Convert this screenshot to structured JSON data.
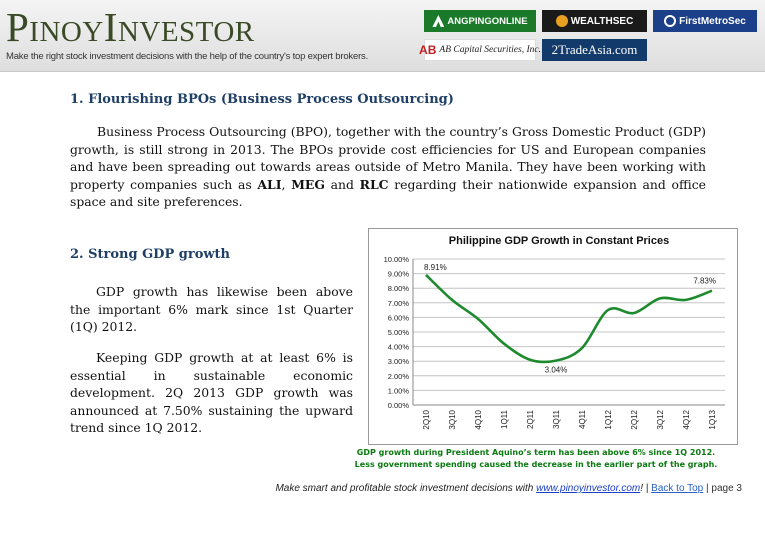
{
  "header": {
    "brand": "PinoyInvestor",
    "tagline": "Make the right stock investment decisions with the help of the country's top expert brokers.",
    "brokers": [
      "ANGPINGONLINE",
      "WEALTHSEC",
      "FirstMetroSec",
      "AB Capital Securities, Inc.",
      "2TradeAsia.com"
    ]
  },
  "sections": {
    "s1": {
      "heading": "1. Flourishing BPOs (Business Process Outsourcing)",
      "p_a": "Business Process Outsourcing (BPO), together with the country’s Gross Domestic Product (GDP) growth, is still strong in 2013. The BPOs provide cost efficiencies for US and European companies and have been spreading out towards areas outside of Metro Manila. They have been working with property companies such as ",
      "t1": "ALI",
      "sep1": ", ",
      "t2": "MEG",
      "sep2": " and ",
      "t3": "RLC",
      "p_b": " regarding their nationwide expansion and office space and site preferences."
    },
    "s2": {
      "heading": "2. Strong GDP growth",
      "p1": "GDP growth has likewise been above the important 6% mark since 1st Quarter (1Q) 2012.",
      "p2": "Keeping GDP growth at at least 6% is essential in sustainable economic development. 2Q 2013 GDP growth was announced at 7.50% sustaining the upward trend since 1Q 2012."
    }
  },
  "chart_data": {
    "type": "line",
    "title": "Philippine GDP Growth in Constant Prices",
    "categories": [
      "2Q10",
      "3Q10",
      "4Q10",
      "1Q11",
      "2Q11",
      "3Q11",
      "4Q11",
      "1Q12",
      "2Q12",
      "3Q12",
      "4Q12",
      "1Q13"
    ],
    "series": [
      {
        "values": [
          8.91,
          7.2,
          5.9,
          4.2,
          3.1,
          3.04,
          3.9,
          6.5,
          6.3,
          7.3,
          7.2,
          7.83
        ]
      }
    ],
    "annotations": [
      {
        "category": "2Q10",
        "label": "8.91%"
      },
      {
        "category": "3Q11",
        "label": "3.04%"
      },
      {
        "category": "1Q13",
        "label": "7.83%"
      }
    ],
    "ylim": [
      0,
      10
    ],
    "yticks": [
      "0.00%",
      "1.00%",
      "2.00%",
      "3.00%",
      "4.00%",
      "5.00%",
      "6.00%",
      "7.00%",
      "8.00%",
      "9.00%",
      "10.00%"
    ],
    "grid": true,
    "line_color": "#1e8a2e"
  },
  "caption": {
    "line1": "GDP growth during President Aquino’s term has been above 6% since 1Q 2012.",
    "line2": "Less government spending caused the decrease in the earlier part of the graph."
  },
  "footer": {
    "text": "Make smart and profitable stock investment decisions with ",
    "link": "www.pinoyinvestor.com",
    "sep": "! | ",
    "back_to_top": "Back to Top",
    "page": " | page 3"
  }
}
